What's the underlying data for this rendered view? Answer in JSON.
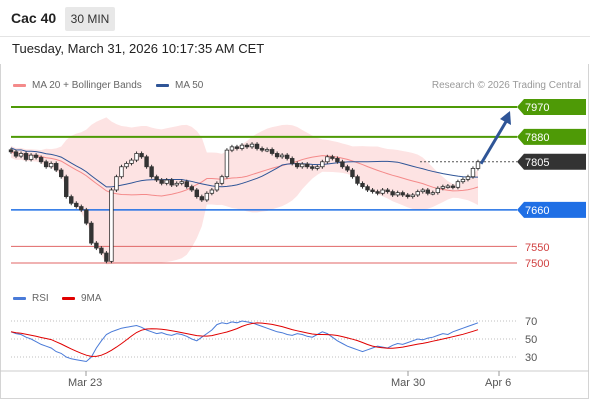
{
  "header": {
    "instrument": "Cac 40",
    "timeframe": "30 MIN",
    "datetime": "Tuesday, March 31, 2026 10:17:35 AM CET"
  },
  "legend": {
    "bollinger_label": "MA 20 + Bollinger Bands",
    "ma50_label": "MA 50",
    "copyright": "Research © 2026 Trading Central"
  },
  "colors": {
    "resistance": "#4e9a06",
    "support": "#1f6fe5",
    "minor_level": "#e06666",
    "current": "#333333",
    "bollinger": "#f48a8a",
    "ma50": "#2f5597",
    "rsi": "#4a7bd8",
    "rsi_ma": "#e00000"
  },
  "levels": {
    "resistance_2": "7970",
    "resistance_1": "7880",
    "current": "7805",
    "support_1": "7660",
    "support_2": "7550",
    "support_3": "7500"
  },
  "rsi": {
    "label": "RSI",
    "ma_label": "9MA",
    "ticks": [
      "70",
      "50",
      "30"
    ]
  },
  "x_axis": {
    "labels": [
      "Mar 23",
      "Mar 30",
      "Apr 6"
    ]
  },
  "chart_data": {
    "type": "candlestick",
    "price_ylim": [
      7460,
      7990
    ],
    "price_levels": [
      7970,
      7880,
      7805,
      7660,
      7550,
      7500
    ],
    "current_price": 7805,
    "forecast_target": 7970,
    "rsi_ylim": [
      20,
      80
    ],
    "rsi_ticks": [
      70,
      50,
      30
    ],
    "close_series": [
      7835,
      7822,
      7830,
      7812,
      7825,
      7818,
      7805,
      7790,
      7800,
      7780,
      7760,
      7700,
      7680,
      7670,
      7660,
      7620,
      7560,
      7545,
      7530,
      7505,
      7720,
      7760,
      7790,
      7800,
      7810,
      7830,
      7820,
      7790,
      7760,
      7750,
      7740,
      7750,
      7735,
      7740,
      7745,
      7730,
      7720,
      7700,
      7690,
      7710,
      7720,
      7740,
      7760,
      7840,
      7850,
      7845,
      7855,
      7850,
      7858,
      7845,
      7840,
      7842,
      7830,
      7820,
      7825,
      7815,
      7800,
      7790,
      7798,
      7790,
      7785,
      7790,
      7805,
      7820,
      7815,
      7805,
      7790,
      7780,
      7760,
      7740,
      7730,
      7720,
      7715,
      7710,
      7720,
      7715,
      7705,
      7712,
      7705,
      7700,
      7705,
      7715,
      7720,
      7710,
      7712,
      7725,
      7730,
      7732,
      7728,
      7745,
      7752,
      7760,
      7785,
      7805
    ],
    "rsi_series": [
      58,
      56,
      55,
      52,
      50,
      47,
      44,
      42,
      40,
      36,
      34,
      30,
      28,
      27,
      26,
      25,
      30,
      40,
      48,
      55,
      58,
      60,
      62,
      63,
      64,
      65,
      63,
      60,
      58,
      56,
      57,
      55,
      54,
      56,
      55,
      53,
      50,
      48,
      52,
      56,
      60,
      66,
      68,
      67,
      69,
      68,
      70,
      69,
      68,
      66,
      64,
      62,
      60,
      58,
      57,
      55,
      54,
      56,
      55,
      53,
      52,
      55,
      58,
      56,
      52,
      48,
      45,
      42,
      40,
      38,
      36,
      38,
      40,
      42,
      41,
      40,
      43,
      45,
      44,
      46,
      48,
      50,
      49,
      51,
      52,
      54,
      56,
      55,
      58,
      60,
      62,
      64,
      66,
      68
    ]
  }
}
